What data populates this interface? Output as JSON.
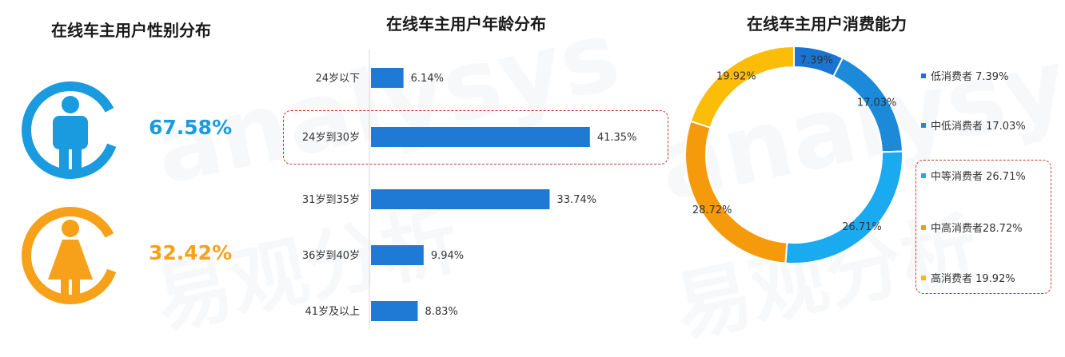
{
  "gender": {
    "title": "在线车主用户性别分布",
    "male_percent": "67.58%",
    "female_percent": "32.42%",
    "male_color": "#1a9be0",
    "female_color": "#f7a11a"
  },
  "age": {
    "title": "在线车主用户年龄分布",
    "bar_color": "#1f7ad6"
  },
  "consume": {
    "title": "在线车主用户消费能力"
  },
  "watermark": {
    "brand": "analysys",
    "cn": "易观分析"
  },
  "chart_data": [
    {
      "type": "bar",
      "orientation": "horizontal",
      "title": "在线车主用户年龄分布",
      "categories": [
        "24岁以下",
        "24岁到30岁",
        "31岁到35岁",
        "36岁到40岁",
        "41岁及以上"
      ],
      "values": [
        6.14,
        41.35,
        33.74,
        9.94,
        8.83
      ],
      "labels": [
        "6.14%",
        "41.35%",
        "33.74%",
        "9.94%",
        "8.83%"
      ],
      "highlighted": [
        "24岁到30岁"
      ],
      "xlim": [
        0,
        45
      ]
    },
    {
      "type": "pie",
      "donut": true,
      "title": "在线车主用户消费能力",
      "categories": [
        "低消费者",
        "中低消费者",
        "中等消费者",
        "中高消费者",
        "高消费者"
      ],
      "values": [
        7.39,
        17.03,
        26.71,
        28.72,
        19.92
      ],
      "labels": [
        "7.39%",
        "17.03%",
        "26.71%",
        "28.72%",
        "19.92%"
      ],
      "legend": [
        "低消费者 7.39%",
        "中低消费者 17.03%",
        "中等消费者 26.71%",
        "中高消费者28.72%",
        "高消费者 19.92%"
      ],
      "colors": [
        "#1a75d2",
        "#1b8ad9",
        "#1aaaf0",
        "#f49a0b",
        "#fbbd08"
      ],
      "highlighted": [
        "中等消费者",
        "中高消费者",
        "高消费者"
      ],
      "legend_position": "right"
    }
  ]
}
